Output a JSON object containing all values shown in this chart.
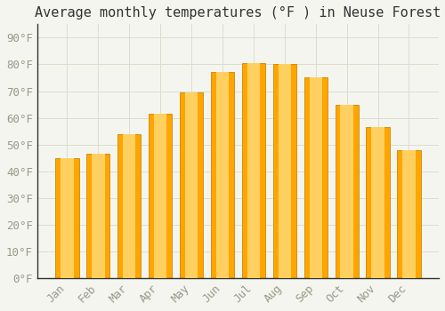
{
  "title": "Average monthly temperatures (°F ) in Neuse Forest",
  "months": [
    "Jan",
    "Feb",
    "Mar",
    "Apr",
    "May",
    "Jun",
    "Jul",
    "Aug",
    "Sep",
    "Oct",
    "Nov",
    "Dec"
  ],
  "values": [
    45,
    46.5,
    54,
    61.5,
    69.5,
    77,
    80.5,
    80,
    75,
    65,
    56.5,
    48
  ],
  "bar_color_main": "#FFA500",
  "bar_color_light": "#FFD060",
  "bar_edge_color": "#CC8800",
  "background_color": "#F5F5F0",
  "plot_bg_color": "#F5F5F0",
  "yticks": [
    0,
    10,
    20,
    30,
    40,
    50,
    60,
    70,
    80,
    90
  ],
  "ylim": [
    0,
    95
  ],
  "title_fontsize": 11,
  "tick_fontsize": 9,
  "grid_color": "#DDDDCC",
  "label_color": "#999988",
  "spine_color": "#333333"
}
